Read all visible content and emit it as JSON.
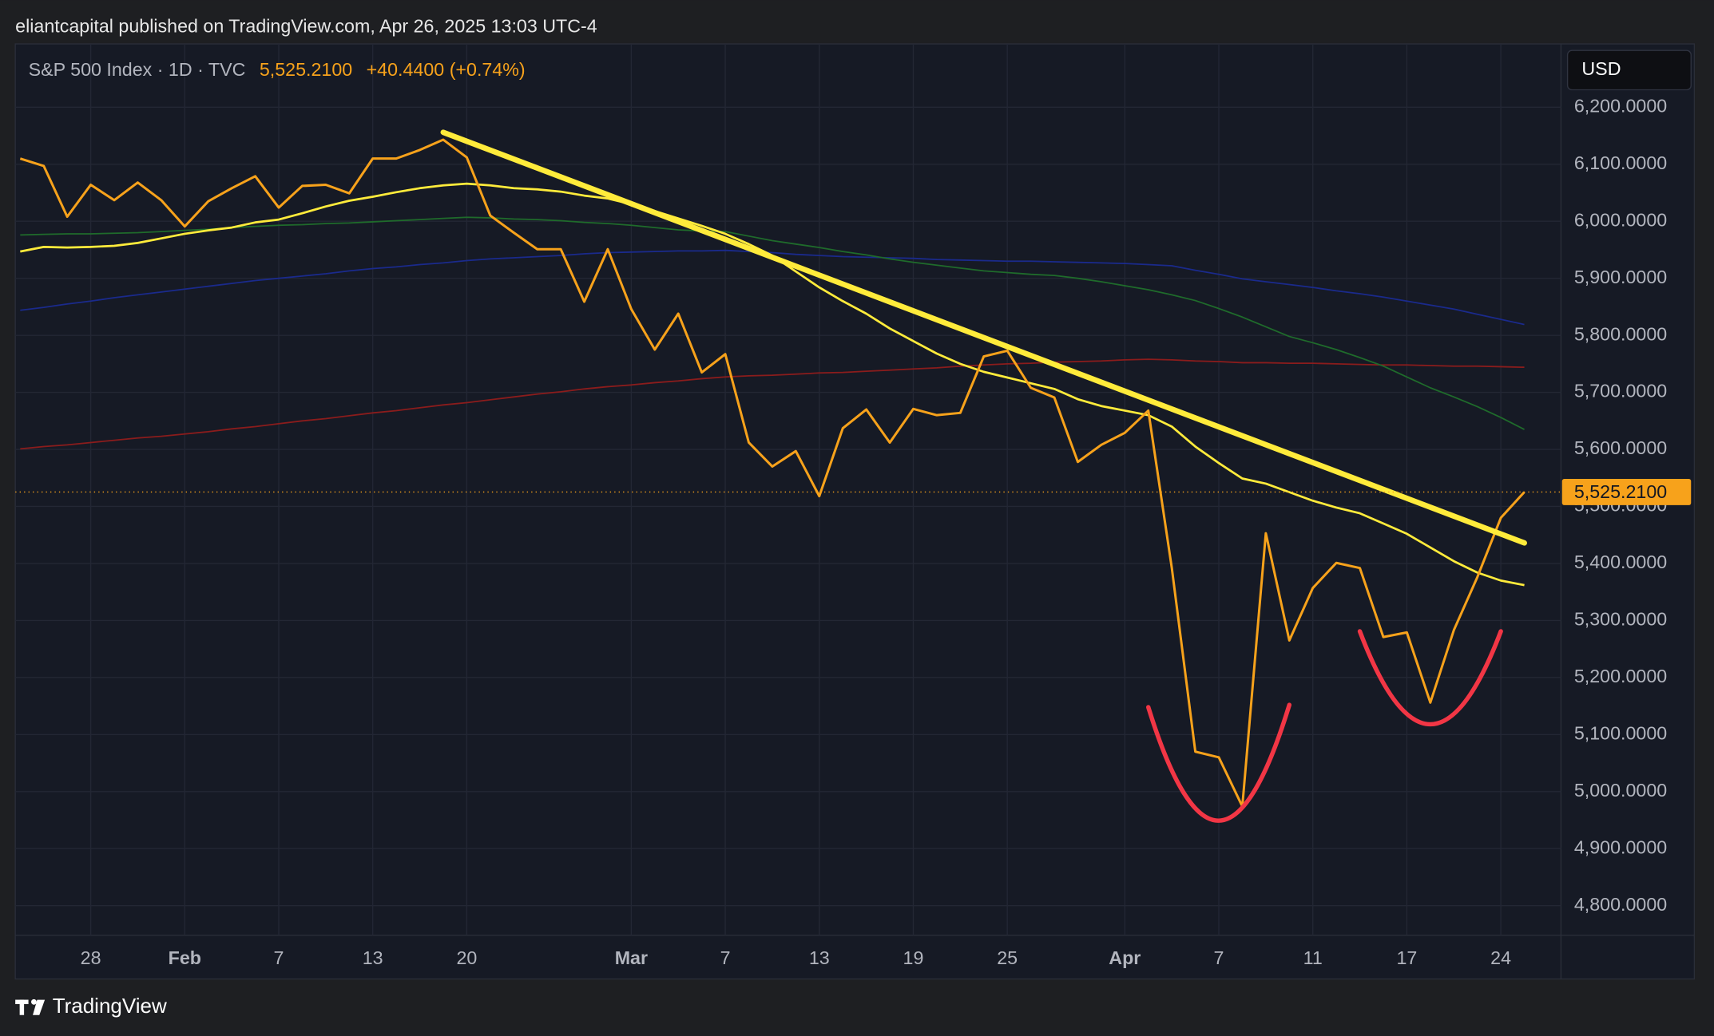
{
  "header": {
    "text": "eliantcapital published on TradingView.com, Apr 26, 2025 13:03 UTC-4"
  },
  "symbol_info": {
    "name": "S&P 500 Index · 1D · TVC",
    "price": "5,525.2100",
    "change": "+40.4400 (+0.74%)"
  },
  "currency_button": "USD",
  "footer": {
    "brand": "TradingView"
  },
  "chart_data": {
    "type": "line",
    "categories": [
      null,
      null,
      null,
      "28",
      null,
      null,
      null,
      "Feb",
      null,
      null,
      null,
      "7",
      null,
      null,
      null,
      "13",
      null,
      null,
      null,
      "20",
      null,
      null,
      null,
      null,
      null,
      null,
      "Mar",
      null,
      null,
      null,
      "7",
      null,
      null,
      null,
      "13",
      null,
      null,
      null,
      "19",
      null,
      null,
      null,
      "25",
      null,
      null,
      null,
      null,
      "Apr",
      null,
      null,
      null,
      "7",
      null,
      null,
      null,
      "11",
      null,
      null,
      null,
      "17",
      null,
      null,
      null,
      "24",
      null
    ],
    "series": [
      {
        "color": "#1a2a8c",
        "values": [
          5844,
          5849,
          5855,
          5860,
          5866,
          5871,
          5876,
          5881,
          5886,
          5891,
          5896,
          5900,
          5904,
          5908,
          5913,
          5917,
          5920,
          5924,
          5927,
          5931,
          5934,
          5936,
          5938,
          5940,
          5943,
          5945,
          5946,
          5947,
          5948,
          5948,
          5949,
          5947,
          5945,
          5942,
          5940,
          5938,
          5937,
          5936,
          5935,
          5933,
          5932,
          5931,
          5930,
          5930,
          5929,
          5928,
          5927,
          5926,
          5924,
          5922,
          5914,
          5907,
          5899,
          5894,
          5889,
          5884,
          5878,
          5873,
          5867,
          5860,
          5853,
          5846,
          5837,
          5828,
          5819
        ]
      },
      {
        "color": "#8b1c1c",
        "values": [
          5601,
          5605,
          5608,
          5612,
          5616,
          5620,
          5623,
          5627,
          5631,
          5636,
          5640,
          5645,
          5650,
          5654,
          5659,
          5664,
          5668,
          5673,
          5678,
          5682,
          5687,
          5692,
          5697,
          5701,
          5706,
          5710,
          5713,
          5717,
          5720,
          5724,
          5727,
          5729,
          5730,
          5732,
          5734,
          5735,
          5737,
          5739,
          5741,
          5743,
          5746,
          5748,
          5750,
          5751,
          5753,
          5754,
          5755,
          5757,
          5758,
          5757,
          5755,
          5754,
          5752,
          5752,
          5751,
          5751,
          5750,
          5749,
          5748,
          5748,
          5747,
          5746,
          5746,
          5745,
          5744
        ]
      },
      {
        "color": "#1f6b2b",
        "values": [
          5976,
          5977,
          5978,
          5978,
          5979,
          5980,
          5982,
          5984,
          5986,
          5989,
          5991,
          5993,
          5994,
          5996,
          5997,
          5999,
          6001,
          6003,
          6005,
          6007,
          6006,
          6004,
          6003,
          6001,
          5998,
          5996,
          5993,
          5989,
          5985,
          5983,
          5982,
          5974,
          5966,
          5960,
          5954,
          5947,
          5941,
          5934,
          5928,
          5923,
          5918,
          5913,
          5910,
          5907,
          5905,
          5900,
          5894,
          5887,
          5880,
          5871,
          5861,
          5847,
          5832,
          5815,
          5798,
          5787,
          5775,
          5761,
          5746,
          5727,
          5708,
          5692,
          5675,
          5656,
          5635
        ]
      },
      {
        "color": "#ffeb3b",
        "values": [
          5947,
          5955,
          5954,
          5955,
          5957,
          5962,
          5970,
          5978,
          5984,
          5989,
          5998,
          6003,
          6014,
          6026,
          6036,
          6043,
          6051,
          6058,
          6063,
          6066,
          6063,
          6058,
          6056,
          6052,
          6045,
          6040,
          6030,
          6018,
          6005,
          5992,
          5978,
          5960,
          5940,
          5912,
          5884,
          5860,
          5838,
          5812,
          5790,
          5768,
          5750,
          5736,
          5726,
          5716,
          5706,
          5688,
          5676,
          5668,
          5660,
          5640,
          5605,
          5576,
          5549,
          5540,
          5525,
          5510,
          5498,
          5488,
          5470,
          5452,
          5428,
          5404,
          5384,
          5370,
          5362
        ]
      },
      {
        "color": "#f7a21b",
        "values": [
          6110,
          6097,
          6008,
          6064,
          6037,
          6068,
          6037,
          5991,
          6035,
          6058,
          6079,
          6024,
          6062,
          6064,
          6049,
          6110,
          6110,
          6125,
          6143,
          6112,
          6010,
          5980,
          5951,
          5951,
          5859,
          5951,
          5846,
          5775,
          5838,
          5735,
          5767,
          5612,
          5570,
          5597,
          5518,
          5637,
          5670,
          5612,
          5671,
          5660,
          5664,
          5763,
          5773,
          5708,
          5691,
          5578,
          5608,
          5629,
          5668,
          5392,
          5070,
          5060,
          4974,
          5453,
          5265,
          5357,
          5401,
          5392,
          5271,
          5279,
          5156,
          5283,
          5376,
          5480,
          5525.21
        ]
      }
    ],
    "price_line": {
      "value": 5525.21,
      "label": "5,525.2100",
      "color": "#f7a21b"
    },
    "drawings": [
      {
        "type": "trendline",
        "color": "#ffeb3b",
        "x": [
          18,
          64
        ],
        "values": [
          6156,
          5436
        ]
      },
      {
        "type": "arc",
        "color": "#f23645",
        "x": [
          48,
          51,
          54
        ],
        "values": [
          5148,
          4949,
          5152
        ]
      },
      {
        "type": "arc",
        "color": "#f23645",
        "x": [
          57,
          60,
          63
        ],
        "values": [
          5281,
          5118,
          5281
        ]
      }
    ],
    "ylim": [
      4748,
      6311
    ],
    "yticks": [
      {
        "value": 4800,
        "label": "4,800.0000"
      },
      {
        "value": 4900,
        "label": "4,900.0000"
      },
      {
        "value": 5000,
        "label": "5,000.0000"
      },
      {
        "value": 5100,
        "label": "5,100.0000"
      },
      {
        "value": 5200,
        "label": "5,200.0000"
      },
      {
        "value": 5300,
        "label": "5,300.0000"
      },
      {
        "value": 5400,
        "label": "5,400.0000"
      },
      {
        "value": 5500,
        "label": "5,500.0000"
      },
      {
        "value": 5600,
        "label": "5,600.0000"
      },
      {
        "value": 5700,
        "label": "5,700.0000"
      },
      {
        "value": 5800,
        "label": "5,800.0000"
      },
      {
        "value": 5900,
        "label": "5,900.0000"
      },
      {
        "value": 6000,
        "label": "6,000.0000"
      },
      {
        "value": 6100,
        "label": "6,100.0000"
      },
      {
        "value": 6200,
        "label": "6,200.0000"
      }
    ],
    "grid": true
  }
}
